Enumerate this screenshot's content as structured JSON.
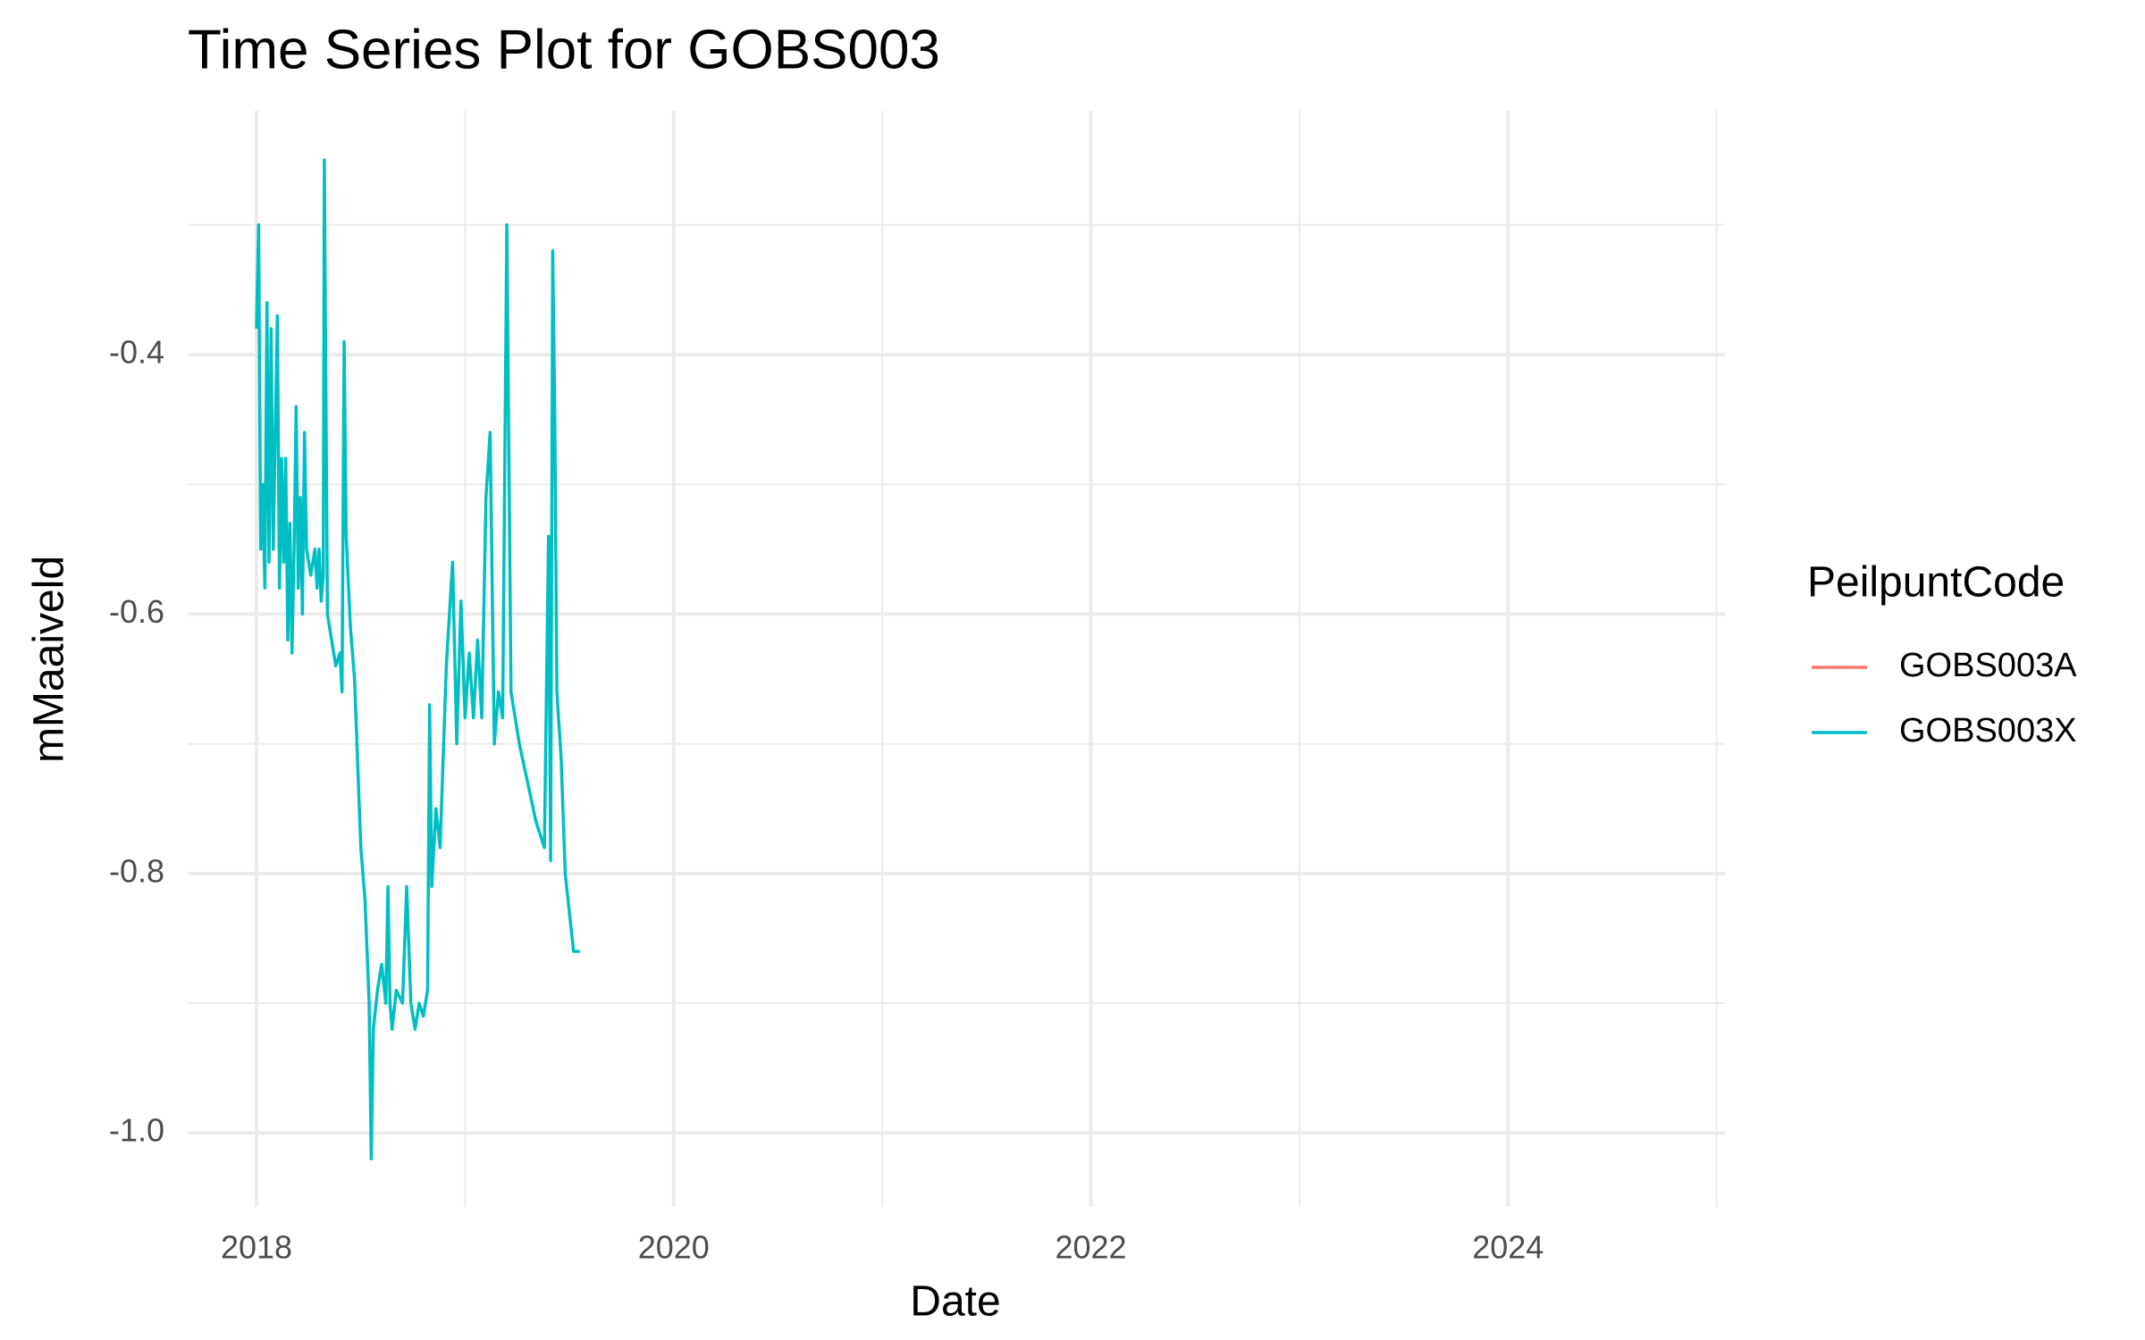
{
  "chart_data": {
    "type": "line",
    "title": "Time Series Plot for GOBS003",
    "x_label": "Date",
    "y_label": "mMaaiveld",
    "legend_title": "PeilpuntCode",
    "xlim": [
      2017.67,
      2025.04
    ],
    "ylim": [
      -1.057,
      -0.212
    ],
    "xticks": [
      2018,
      2020,
      2022,
      2024
    ],
    "yticks": [
      -1.0,
      -0.8,
      -0.6,
      -0.4
    ],
    "xticks_minor": [
      2019,
      2021,
      2023,
      2025
    ],
    "yticks_minor": [
      -0.9,
      -0.7,
      -0.5,
      -0.3
    ],
    "yticks_labels": [
      "-1.0",
      "-0.8",
      "-0.6",
      "-0.4"
    ],
    "grid": true,
    "legend_position": "right",
    "series": [
      {
        "name": "GOBS003A",
        "color": "#F8766D",
        "x": [],
        "values": []
      },
      {
        "name": "GOBS003X",
        "color": "#00BFC4",
        "x": [
          2018.0,
          2018.01,
          2018.02,
          2018.03,
          2018.04,
          2018.05,
          2018.06,
          2018.07,
          2018.08,
          2018.1,
          2018.11,
          2018.12,
          2018.13,
          2018.14,
          2018.15,
          2018.16,
          2018.17,
          2018.18,
          2018.19,
          2018.2,
          2018.21,
          2018.22,
          2018.23,
          2018.24,
          2018.26,
          2018.28,
          2018.29,
          2018.3,
          2018.31,
          2018.32,
          2018.325,
          2018.34,
          2018.36,
          2018.38,
          2018.4,
          2018.41,
          2018.42,
          2018.43,
          2018.45,
          2018.47,
          2018.5,
          2018.52,
          2018.54,
          2018.55,
          2018.56,
          2018.58,
          2018.6,
          2018.62,
          2018.63,
          2018.64,
          2018.65,
          2018.67,
          2018.7,
          2018.72,
          2018.74,
          2018.76,
          2018.78,
          2018.8,
          2018.82,
          2018.83,
          2018.84,
          2018.86,
          2018.88,
          2018.91,
          2018.94,
          2018.96,
          2018.98,
          2019.0,
          2019.02,
          2019.04,
          2019.06,
          2019.08,
          2019.1,
          2019.12,
          2019.14,
          2019.16,
          2019.18,
          2019.2,
          2019.22,
          2019.26,
          2019.3,
          2019.34,
          2019.38,
          2019.4,
          2019.41,
          2019.42,
          2019.43,
          2019.44,
          2019.46,
          2019.48,
          2019.5,
          2019.52,
          2019.55
        ],
        "values": [
          -0.38,
          -0.3,
          -0.55,
          -0.5,
          -0.58,
          -0.36,
          -0.56,
          -0.38,
          -0.55,
          -0.37,
          -0.58,
          -0.48,
          -0.56,
          -0.48,
          -0.62,
          -0.53,
          -0.63,
          -0.55,
          -0.44,
          -0.58,
          -0.51,
          -0.6,
          -0.46,
          -0.55,
          -0.57,
          -0.55,
          -0.58,
          -0.55,
          -0.59,
          -0.57,
          -0.25,
          -0.6,
          -0.62,
          -0.64,
          -0.63,
          -0.66,
          -0.39,
          -0.54,
          -0.61,
          -0.65,
          -0.78,
          -0.82,
          -0.9,
          -1.02,
          -0.92,
          -0.89,
          -0.87,
          -0.9,
          -0.81,
          -0.9,
          -0.92,
          -0.89,
          -0.9,
          -0.81,
          -0.9,
          -0.92,
          -0.9,
          -0.91,
          -0.89,
          -0.67,
          -0.81,
          -0.75,
          -0.78,
          -0.64,
          -0.56,
          -0.7,
          -0.59,
          -0.68,
          -0.63,
          -0.68,
          -0.62,
          -0.68,
          -0.51,
          -0.46,
          -0.7,
          -0.66,
          -0.68,
          -0.3,
          -0.66,
          -0.7,
          -0.73,
          -0.76,
          -0.78,
          -0.54,
          -0.79,
          -0.32,
          -0.45,
          -0.66,
          -0.71,
          -0.8,
          -0.83,
          -0.86,
          -0.86
        ]
      }
    ]
  }
}
